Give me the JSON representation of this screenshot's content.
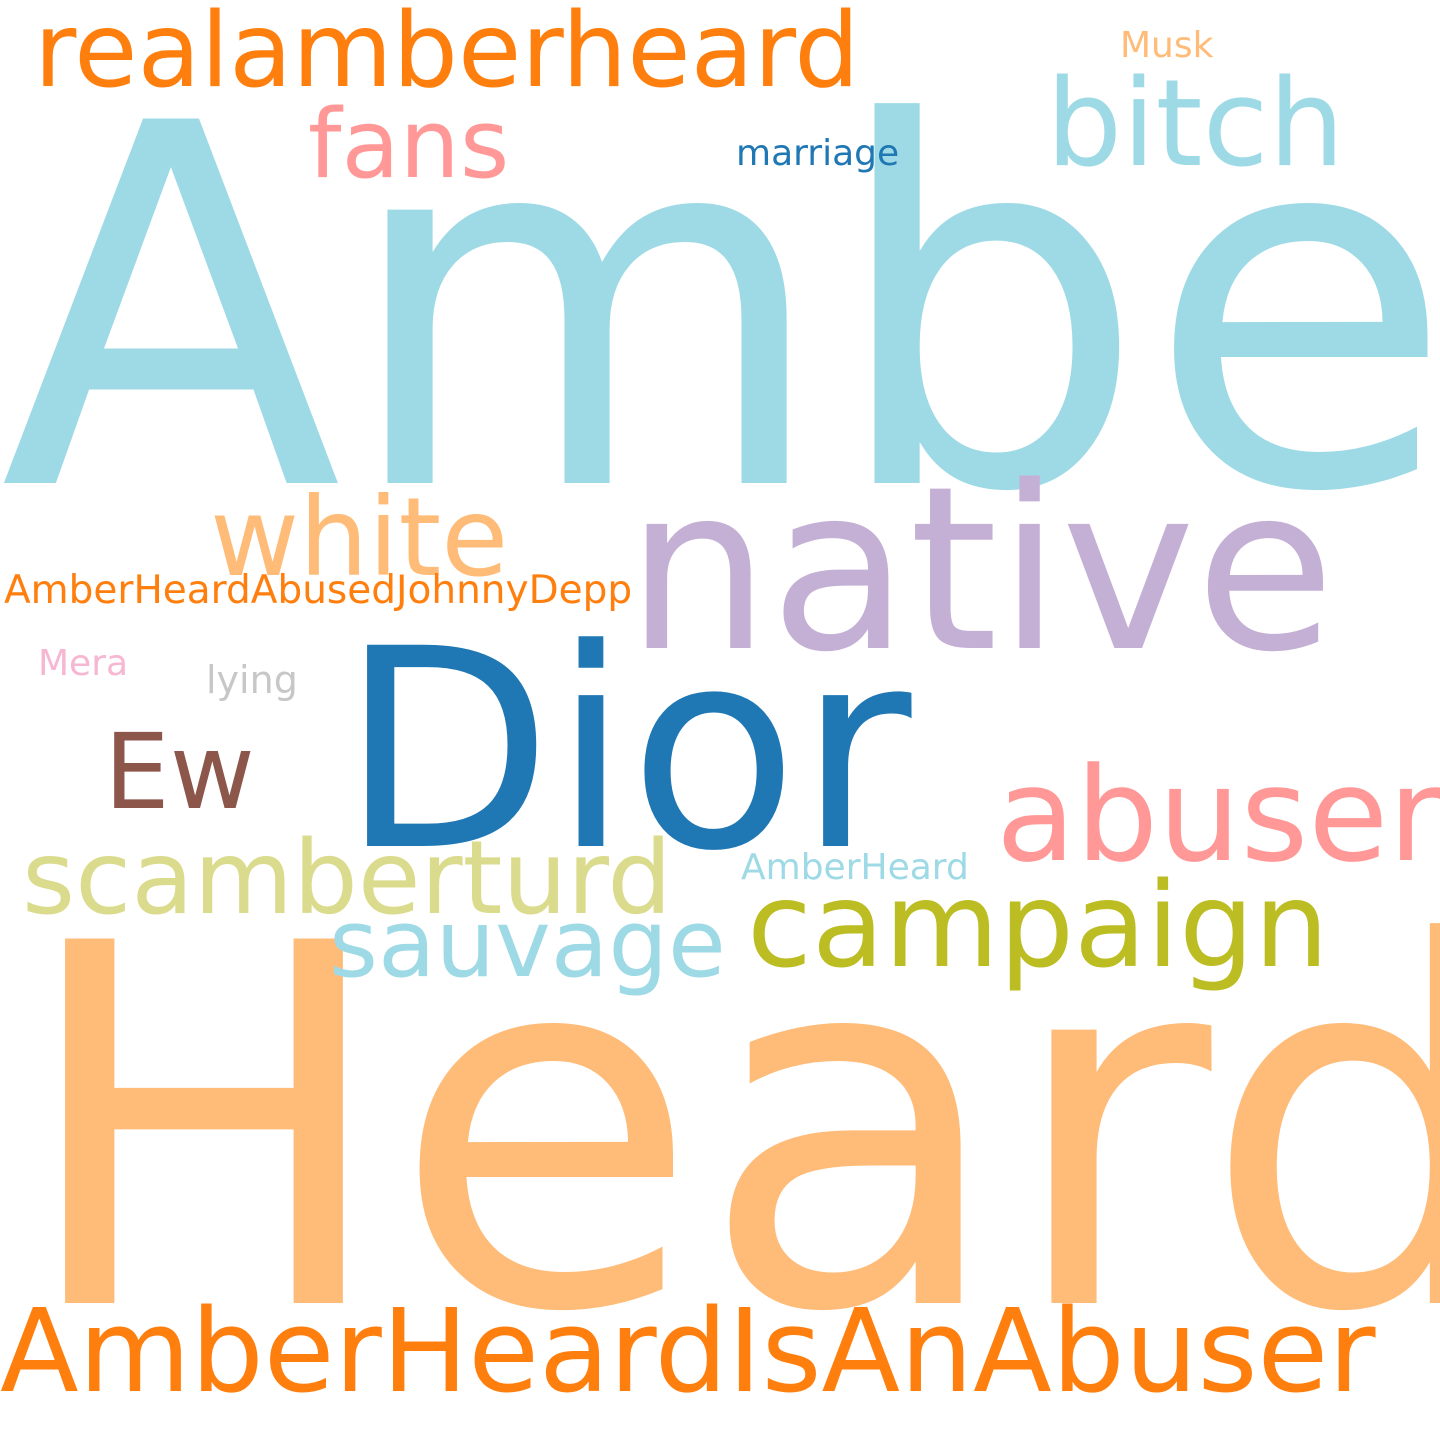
{
  "words": [
    {
      "text": "Amber",
      "color": "#9edae5"
    },
    {
      "text": "Heard",
      "color": "#ffbb78"
    },
    {
      "text": "native",
      "color": "#c5b0d5"
    },
    {
      "text": "Dior",
      "color": "#1f77b4"
    },
    {
      "text": "realamberheard",
      "color": "#ff7f0e"
    },
    {
      "text": "bitch",
      "color": "#9edae5"
    },
    {
      "text": "fans",
      "color": "#ff9896"
    },
    {
      "text": "marriage",
      "color": "#1f77b4"
    },
    {
      "text": "Musk",
      "color": "#ffbb78"
    },
    {
      "text": "white",
      "color": "#ffbb78"
    },
    {
      "text": "AmberHeardAbusedJohnnyDepp",
      "color": "#ff7f0e"
    },
    {
      "text": "Mera",
      "color": "#f7b6d2"
    },
    {
      "text": "lying",
      "color": "#c7c7c7"
    },
    {
      "text": "Ew",
      "color": "#8c564b"
    },
    {
      "text": "abuser",
      "color": "#ff9896"
    },
    {
      "text": "scamberturd",
      "color": "#dbdb8d"
    },
    {
      "text": "AmberHeard",
      "color": "#9edae5"
    },
    {
      "text": "campaign",
      "color": "#bcbd22"
    },
    {
      "text": "sauvage",
      "color": "#9edae5"
    },
    {
      "text": "AmberHeardIsAnAbuser",
      "color": "#ff7f0e"
    }
  ]
}
